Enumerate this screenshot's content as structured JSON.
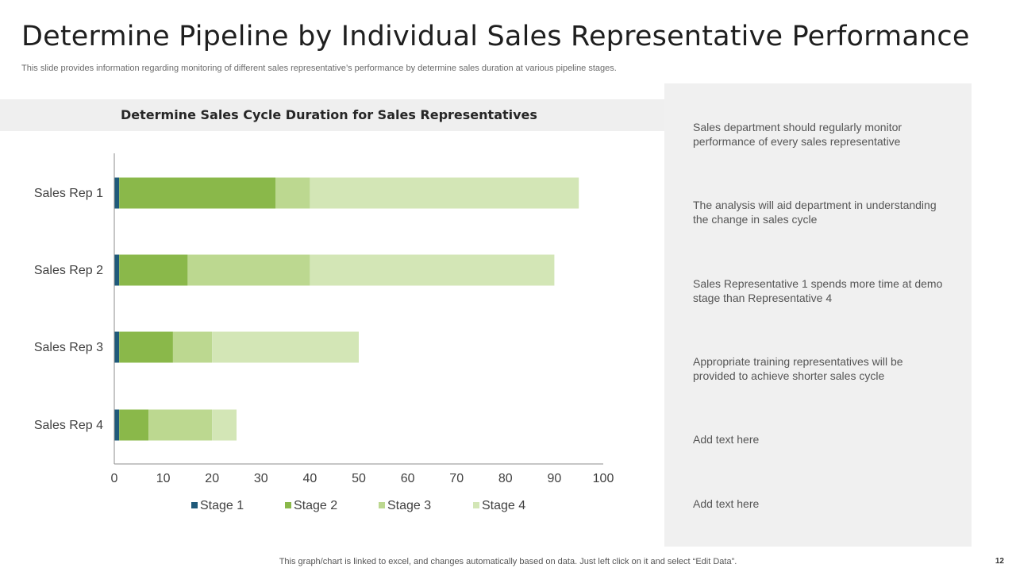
{
  "header": {
    "title": "Determine Pipeline by Individual Sales Representative Performance",
    "subtitle": "This slide provides information regarding monitoring of different sales representative’s performance by determine sales duration at various pipeline stages."
  },
  "chart_header": "Determine Sales Cycle Duration for Sales Representatives",
  "chart_data": {
    "type": "bar",
    "orientation": "horizontal",
    "stacked": true,
    "title": "Determine Sales Cycle Duration for Sales Representatives",
    "categories": [
      "Sales Rep 1",
      "Sales Rep 2",
      "Sales Rep 3",
      "Sales Rep 4"
    ],
    "series": [
      {
        "name": "Stage 1",
        "color": "#1f5a7a",
        "values": [
          1,
          1,
          1,
          1
        ]
      },
      {
        "name": "Stage 2",
        "color": "#8ab84a",
        "values": [
          32,
          14,
          11,
          6
        ]
      },
      {
        "name": "Stage 3",
        "color": "#bcd890",
        "values": [
          7,
          25,
          8,
          13
        ]
      },
      {
        "name": "Stage 4",
        "color": "#d3e6b6",
        "values": [
          55,
          50,
          30,
          5
        ]
      }
    ],
    "xlim": [
      0,
      100
    ],
    "xticks": [
      "0",
      "10",
      "20",
      "30",
      "40",
      "50",
      "60",
      "70",
      "80",
      "90",
      "100"
    ],
    "xlabel": "",
    "ylabel": "",
    "legend": "bottom",
    "grid": false
  },
  "notes": [
    "Sales department should regularly monitor performance of every sales representative",
    "The analysis will aid department in understanding the change in sales cycle",
    "Sales Representative 1 spends more time at demo stage than Representative 4",
    "Appropriate training representatives will be provided to achieve shorter sales cycle",
    "Add text here",
    "Add text here"
  ],
  "footer": "This graph/chart is linked to excel,  and changes automatically based on data. Just left click on it and select “Edit Data”.",
  "slide_number": "12"
}
